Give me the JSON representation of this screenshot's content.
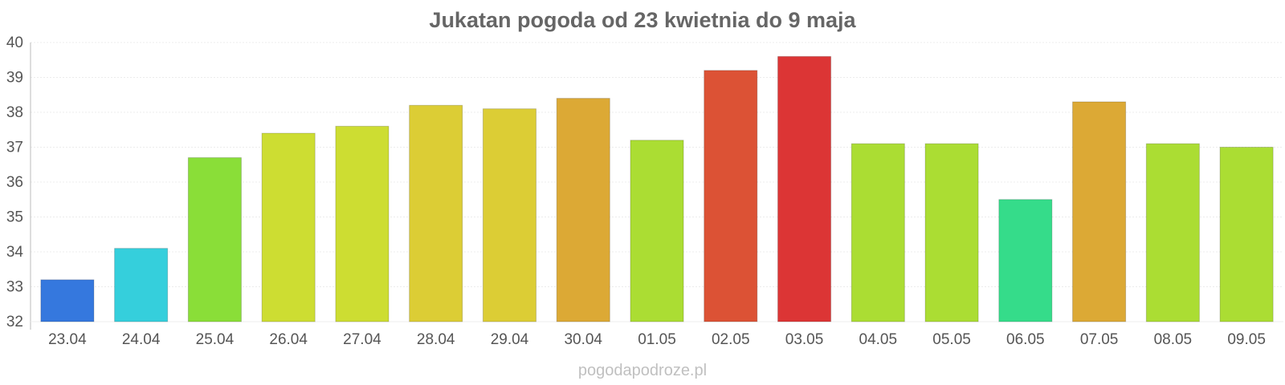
{
  "chart_data": {
    "type": "bar",
    "title": "Jukatan pogoda od 23 kwietnia do 9 maja",
    "xlabel": "",
    "ylabel": "",
    "ylim": [
      32,
      40
    ],
    "yticks": [
      32,
      33,
      34,
      35,
      36,
      37,
      38,
      39,
      40
    ],
    "grid": true,
    "legend": "none",
    "categories": [
      "23.04",
      "24.04",
      "25.04",
      "26.04",
      "27.04",
      "28.04",
      "29.04",
      "30.04",
      "01.05",
      "02.05",
      "03.05",
      "04.05",
      "05.05",
      "06.05",
      "07.05",
      "08.05",
      "09.05"
    ],
    "values": [
      33.2,
      34.1,
      36.7,
      37.4,
      37.6,
      38.2,
      38.1,
      38.4,
      37.2,
      39.2,
      39.6,
      37.1,
      37.1,
      35.5,
      38.3,
      37.1,
      37.0
    ],
    "colors": [
      "#3578de",
      "#35cfdc",
      "#8ade38",
      "#cddd32",
      "#cddd32",
      "#dccd35",
      "#dccd35",
      "#dca935",
      "#abdd33",
      "#dc5235",
      "#dc3535",
      "#abdd33",
      "#abdd33",
      "#35dc8a",
      "#dca935",
      "#abdd33",
      "#abdd33"
    ]
  },
  "watermark": "pogodapodroze.pl"
}
